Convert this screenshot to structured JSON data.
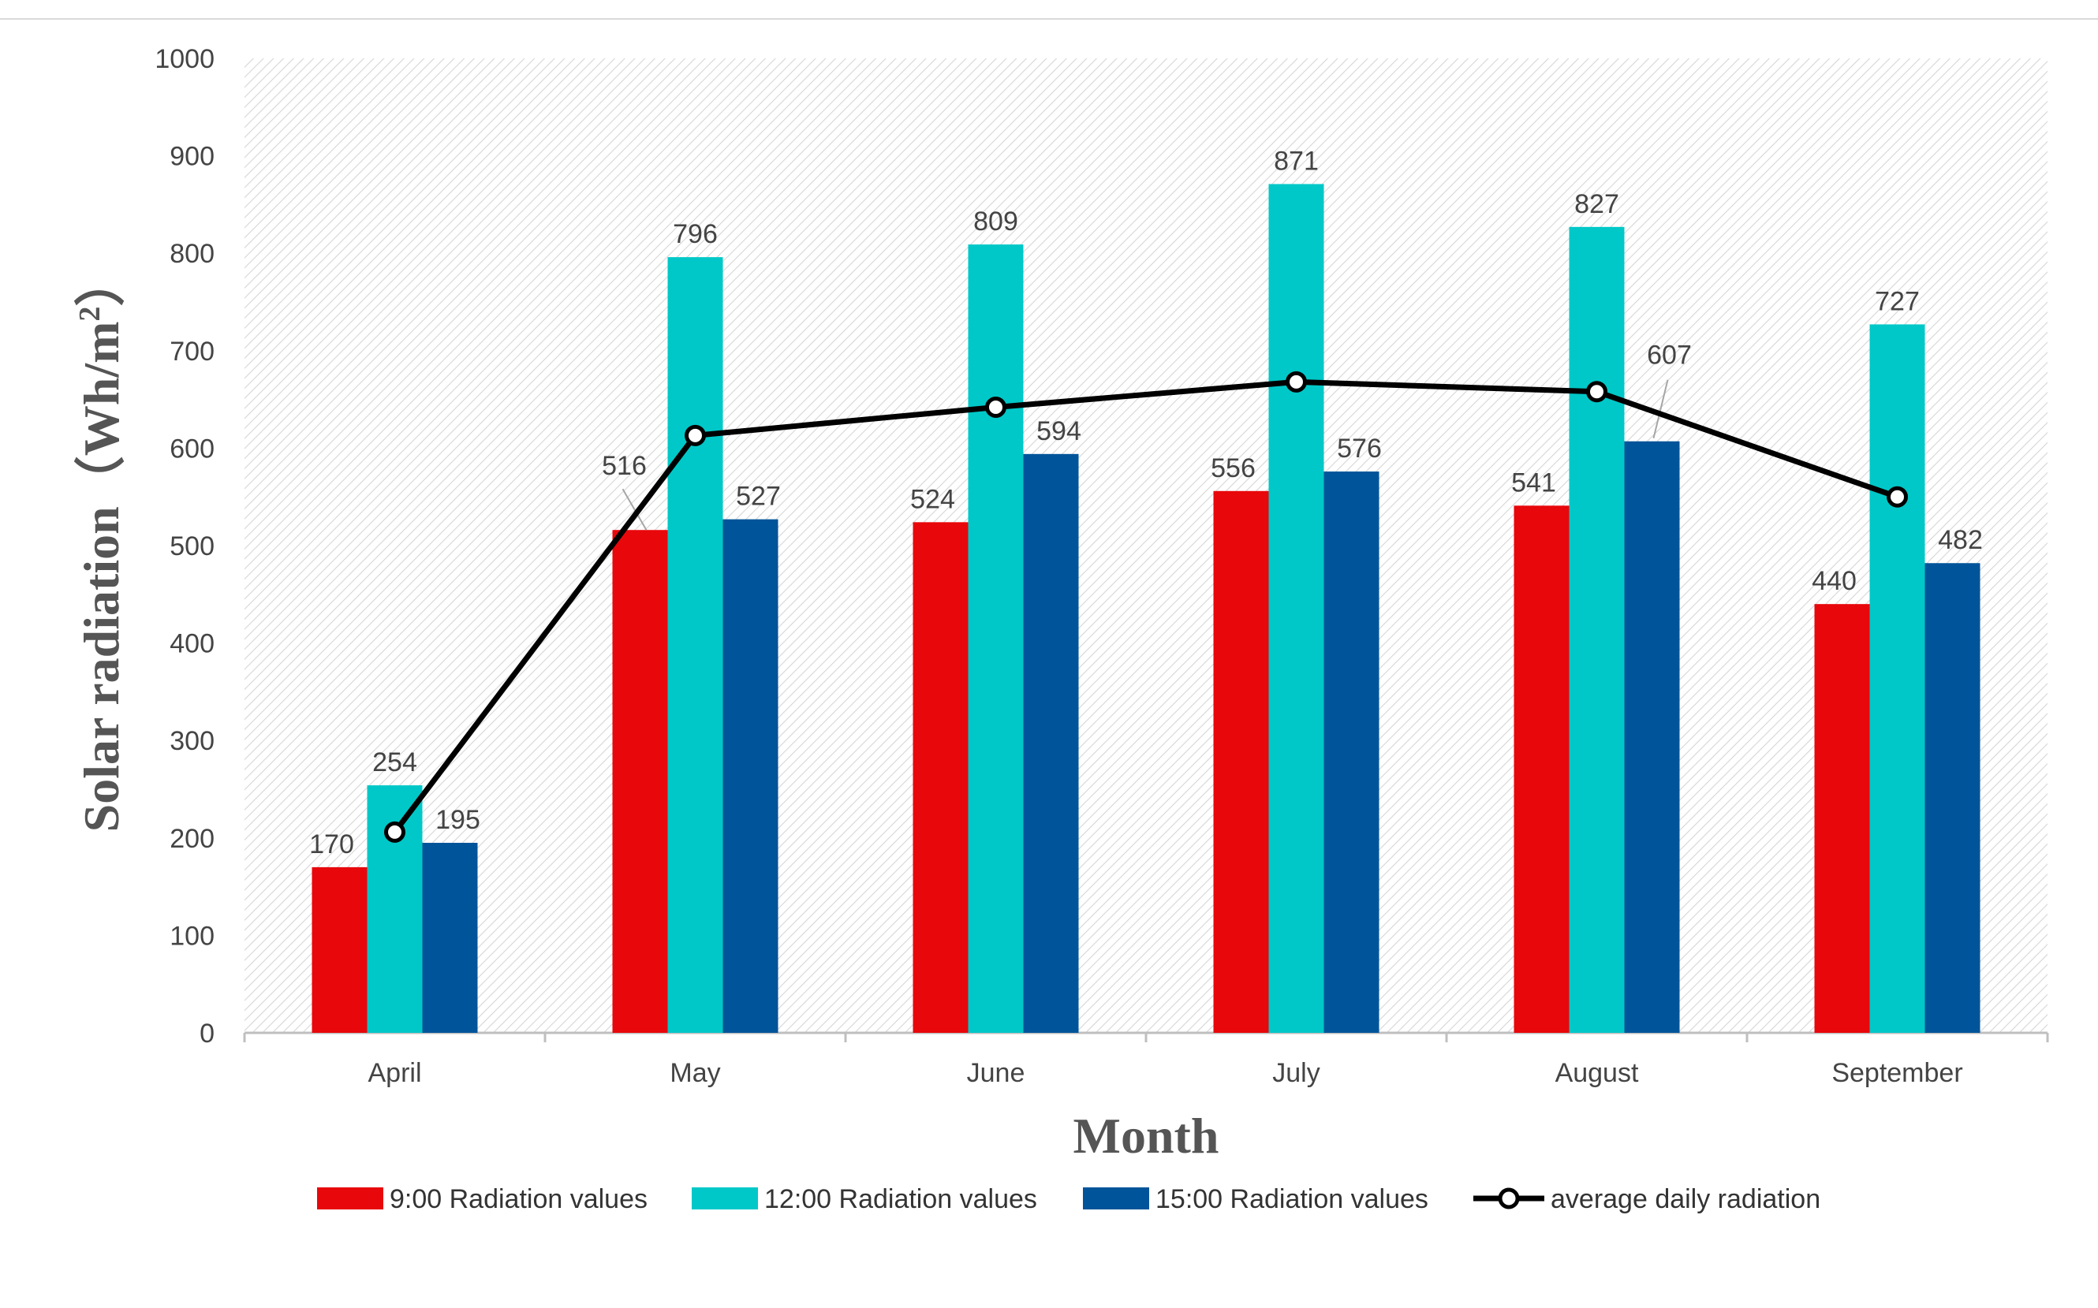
{
  "chart_data": {
    "type": "bar",
    "title": "",
    "xlabel": "Month",
    "ylabel": "Solar radiation（Wh/m²）",
    "ylabel_main": "Solar radiation（Wh/m",
    "ylabel_sup": "2",
    "ylabel_end": "）",
    "ylim": [
      0,
      1000
    ],
    "ytick_step": 100,
    "yticks": [
      0,
      100,
      200,
      300,
      400,
      500,
      600,
      700,
      800,
      900,
      1000
    ],
    "grid": false,
    "legend_position": "bottom",
    "categories": [
      "April",
      "May",
      "June",
      "July",
      "August",
      "September"
    ],
    "series": [
      {
        "name": "9:00 Radiation values",
        "type": "bar",
        "color": "#E8070B",
        "values": [
          170,
          516,
          524,
          556,
          541,
          440
        ]
      },
      {
        "name": "12:00 Radiation values",
        "type": "bar",
        "color": "#00C8C8",
        "values": [
          254,
          796,
          809,
          871,
          827,
          727
        ]
      },
      {
        "name": "15:00 Radiation values",
        "type": "bar",
        "color": "#00549A",
        "values": [
          195,
          527,
          594,
          576,
          607,
          482
        ]
      },
      {
        "name": "average daily radiation",
        "type": "line",
        "color": "#000000",
        "values": [
          206,
          613,
          642,
          668,
          658,
          550
        ]
      }
    ]
  }
}
